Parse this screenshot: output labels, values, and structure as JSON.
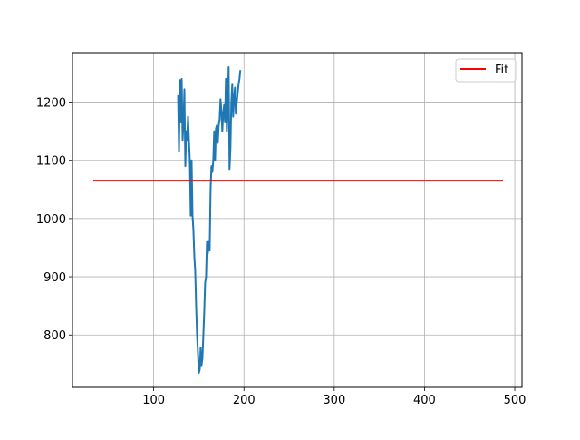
{
  "chart_data": {
    "type": "line",
    "title": "",
    "xlabel": "",
    "ylabel": "",
    "xlim": [
      10,
      508
    ],
    "ylim": [
      710,
      1285
    ],
    "x_ticks": [
      100,
      200,
      300,
      400,
      500
    ],
    "y_ticks": [
      800,
      900,
      1000,
      1100,
      1200
    ],
    "grid": true,
    "legend": {
      "placement": "top-right",
      "entries": [
        "Fit"
      ]
    },
    "series": [
      {
        "color": "#1f77b4",
        "x": [
          127,
          128,
          129,
          130,
          131,
          132,
          133,
          134,
          135,
          136,
          137,
          138,
          139,
          140,
          141,
          142,
          143,
          144,
          145,
          146,
          147,
          148,
          149,
          150,
          151,
          152,
          153,
          154,
          155,
          156,
          157,
          158,
          159,
          160,
          161,
          162,
          163,
          164,
          165,
          166,
          167,
          168,
          169,
          170,
          171,
          172,
          173,
          174,
          175,
          176,
          177,
          178,
          179,
          180,
          181,
          182,
          183,
          184,
          185,
          186,
          187,
          188,
          189,
          190,
          191,
          192,
          193,
          194,
          195,
          196
        ],
        "y": [
          1212,
          1115,
          1238,
          1165,
          1240,
          1135,
          1165,
          1222,
          1090,
          1150,
          1135,
          1175,
          1135,
          1100,
          1005,
          1100,
          1005,
          980,
          935,
          910,
          850,
          800,
          770,
          735,
          740,
          778,
          748,
          760,
          800,
          840,
          890,
          900,
          960,
          940,
          960,
          945,
          1050,
          1090,
          1080,
          1100,
          1150,
          1100,
          1155,
          1160,
          1130,
          1160,
          1170,
          1205,
          1185,
          1150,
          1180,
          1195,
          1165,
          1240,
          1150,
          1190,
          1260,
          1085,
          1120,
          1200,
          1230,
          1175,
          1205,
          1225,
          1180,
          1200,
          1215,
          1230,
          1240,
          1255
        ]
      },
      {
        "name": "Fit",
        "color": "#ff0000",
        "x": [
          33,
          487
        ],
        "y": [
          1065,
          1065
        ]
      }
    ]
  }
}
